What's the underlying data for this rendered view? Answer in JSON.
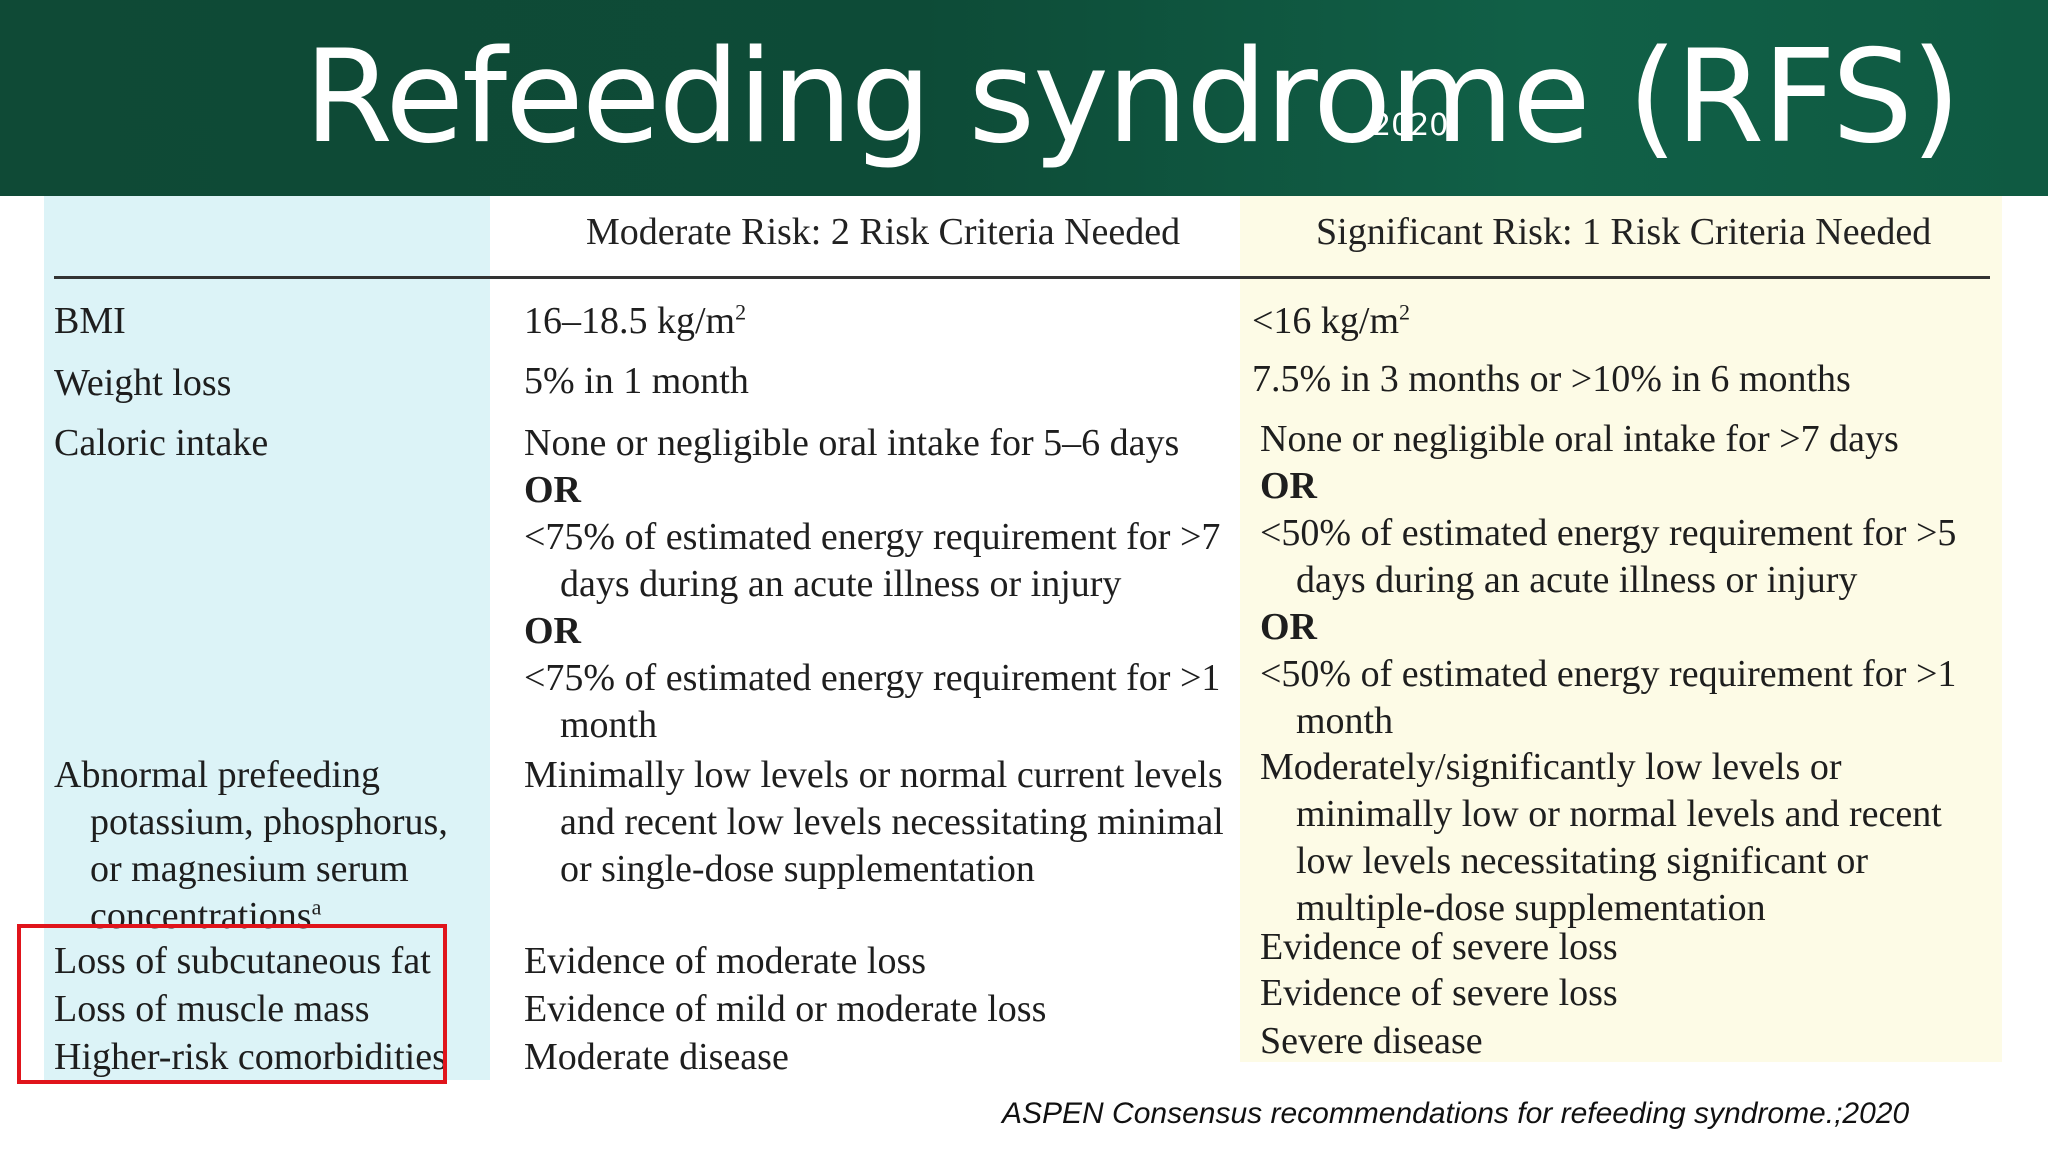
{
  "title": "Refeeding syndrome (RFS)",
  "title_year": "2020",
  "columns": {
    "moderate": "Moderate Risk: 2 Risk Criteria Needed",
    "significant": "Significant Risk: 1 Risk Criteria Needed"
  },
  "rows": {
    "bmi": {
      "label": "BMI",
      "moderate": "16–18.5 kg/m",
      "significant": "<16 kg/m",
      "superscript": "2"
    },
    "weight_loss": {
      "label": "Weight loss",
      "moderate": "5% in 1 month",
      "significant": "7.5% in 3 months or >10% in 6 months"
    },
    "caloric_intake": {
      "label": "Caloric intake",
      "moderate": {
        "l1": "None or negligible oral intake for 5–6 days",
        "or1": "OR",
        "l2": "<75% of estimated energy requirement for >7",
        "l3": "days during an acute illness or injury",
        "or2": "OR",
        "l4": "<75% of estimated energy requirement for >1",
        "l5": "month"
      },
      "significant": {
        "l1": "None or negligible oral intake for >7 days",
        "or1": "OR",
        "l2": "<50% of estimated energy requirement for >5",
        "l3": "days during an acute illness or injury",
        "or2": "OR",
        "l4": "<50% of estimated energy requirement for >1",
        "l5": "month"
      }
    },
    "electrolytes": {
      "label_l1": "Abnormal prefeeding",
      "label_l2": "potassium, phosphorus,",
      "label_l3": "or magnesium serum",
      "label_l4": "concentrations",
      "label_sup": "a",
      "moderate": {
        "l1": "Minimally low levels or normal current levels",
        "l2": "and recent low levels necessitating minimal",
        "l3": "or single-dose supplementation"
      },
      "significant": {
        "l1": "Moderately/significantly low levels or",
        "l2": "minimally low or normal levels and recent",
        "l3": "low levels necessitating significant or",
        "l4": "multiple-dose supplementation"
      }
    },
    "subcutaneous_fat": {
      "label": "Loss of subcutaneous fat",
      "moderate": "Evidence of moderate loss",
      "significant": "Evidence of severe loss"
    },
    "muscle_mass": {
      "label": "Loss of muscle mass",
      "moderate": "Evidence of mild or moderate loss",
      "significant": "Evidence of severe loss"
    },
    "comorbidities": {
      "label": "Higher-risk comorbidities",
      "moderate": "Moderate disease",
      "significant": "Severe disease"
    }
  },
  "citation": "ASPEN Consensus recommendations for refeeding syndrome.;2020",
  "colors": {
    "header_bg": "#0d4b37",
    "label_col_bg": "#dcf3f7",
    "significant_col_bg": "#fdfbe6",
    "highlight_border": "#e0141b"
  }
}
